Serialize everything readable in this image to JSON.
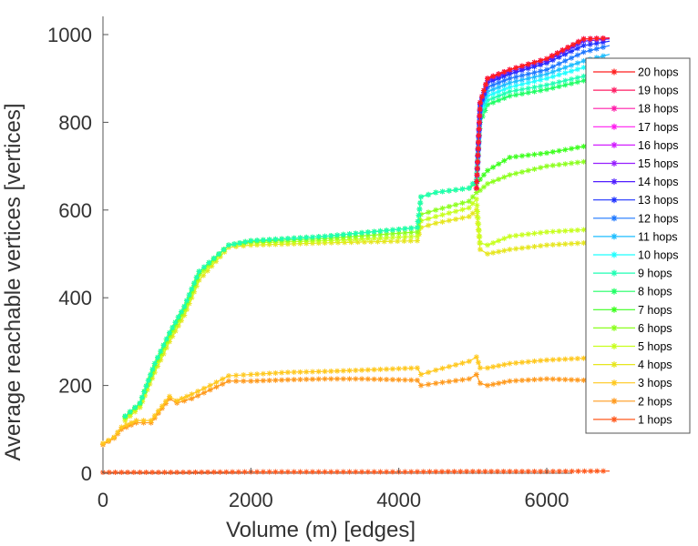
{
  "chart_data": {
    "type": "line",
    "title": "",
    "xlabel": "Volume (m) [edges]",
    "ylabel": "Average reachable vertices [vertices]",
    "xlim": [
      0,
      7000
    ],
    "ylim": [
      0,
      1030
    ],
    "xticks": [
      0,
      2000,
      4000,
      6000
    ],
    "yticks": [
      0,
      200,
      400,
      600,
      800,
      1000
    ],
    "grid": false,
    "legend_position": "right",
    "series": [
      {
        "name": "1 hops",
        "color": "#ff5a1e",
        "x": [
          0,
          1000,
          2000,
          3000,
          4000,
          5000,
          6000,
          6850
        ],
        "y": [
          2,
          2,
          3,
          3,
          3,
          4,
          4,
          5
        ]
      },
      {
        "name": "2 hops",
        "color": "#ff9a1e",
        "x": [
          0,
          150,
          250,
          450,
          650,
          900,
          1000,
          1200,
          1450,
          1700,
          2000,
          2500,
          3000,
          3500,
          4250,
          4300,
          4500,
          4950,
          5050,
          5100,
          5200,
          5500,
          6000,
          6500,
          6850
        ],
        "y": [
          65,
          80,
          100,
          115,
          115,
          170,
          160,
          170,
          190,
          210,
          210,
          213,
          215,
          215,
          212,
          200,
          205,
          215,
          225,
          205,
          200,
          210,
          215,
          212,
          230
        ]
      },
      {
        "name": "3 hops",
        "color": "#ffc81e",
        "x": [
          0,
          150,
          250,
          450,
          650,
          900,
          1000,
          1200,
          1450,
          1700,
          2000,
          2500,
          3000,
          3500,
          4250,
          4300,
          4500,
          4950,
          5050,
          5100,
          5200,
          5500,
          6000,
          6500,
          6850
        ],
        "y": [
          68,
          82,
          105,
          120,
          120,
          175,
          165,
          180,
          200,
          222,
          225,
          230,
          232,
          235,
          240,
          225,
          235,
          255,
          265,
          240,
          240,
          250,
          258,
          262,
          280
        ]
      },
      {
        "name": "4 hops",
        "color": "#e6e61e",
        "x": [
          300,
          500,
          700,
          900,
          1100,
          1300,
          1700,
          2000,
          3000,
          4250,
          4300,
          4500,
          4950,
          5050,
          5100,
          5200,
          5500,
          6000,
          6500,
          6850
        ],
        "y": [
          120,
          150,
          230,
          300,
          360,
          440,
          515,
          520,
          525,
          530,
          560,
          570,
          585,
          600,
          510,
          500,
          510,
          520,
          525,
          530
        ]
      },
      {
        "name": "5 hops",
        "color": "#c8ff1e",
        "x": [
          300,
          500,
          700,
          900,
          1100,
          1300,
          1700,
          2000,
          3000,
          4250,
          4300,
          4500,
          4950,
          5050,
          5100,
          5200,
          5500,
          6000,
          6500,
          6850
        ],
        "y": [
          125,
          155,
          240,
          310,
          370,
          450,
          520,
          525,
          530,
          540,
          575,
          585,
          605,
          625,
          525,
          520,
          540,
          550,
          555,
          565
        ]
      },
      {
        "name": "6 hops",
        "color": "#8cff1e",
        "x": [
          300,
          500,
          700,
          900,
          1100,
          1300,
          1700,
          2000,
          3000,
          4250,
          4300,
          4500,
          4950,
          5050,
          5100,
          5200,
          5500,
          6000,
          6500,
          6850
        ],
        "y": [
          128,
          158,
          245,
          315,
          375,
          455,
          520,
          528,
          535,
          550,
          590,
          600,
          620,
          640,
          645,
          660,
          680,
          700,
          710,
          730
        ]
      },
      {
        "name": "7 hops",
        "color": "#3cff1e",
        "x": [
          300,
          500,
          700,
          900,
          1100,
          1300,
          1700,
          2000,
          3000,
          4250,
          4300,
          4500,
          4950,
          5050,
          5100,
          5200,
          5500,
          6000,
          6500,
          6850
        ],
        "y": [
          130,
          160,
          250,
          320,
          380,
          460,
          520,
          530,
          540,
          560,
          630,
          640,
          650,
          660,
          670,
          690,
          720,
          730,
          745,
          765
        ]
      },
      {
        "name": "8 hops",
        "color": "#1eff64",
        "x": [
          300,
          500,
          700,
          900,
          1100,
          1300,
          1700,
          2000,
          3000,
          4250,
          4300,
          4500,
          4950,
          5050,
          5100,
          5200,
          5500,
          6000,
          6500,
          6850
        ],
        "y": [
          130,
          160,
          250,
          320,
          380,
          460,
          520,
          530,
          540,
          560,
          630,
          640,
          650,
          670,
          800,
          840,
          860,
          875,
          895,
          910
        ]
      },
      {
        "name": "9 hops",
        "color": "#1effb4",
        "x": [
          300,
          500,
          700,
          900,
          1100,
          1300,
          1700,
          2000,
          3000,
          4250,
          4300,
          4500,
          4950,
          5050,
          5100,
          5200,
          5500,
          6000,
          6500,
          6850
        ],
        "y": [
          130,
          160,
          250,
          320,
          380,
          460,
          520,
          530,
          540,
          560,
          630,
          640,
          650,
          670,
          815,
          850,
          870,
          885,
          905,
          920
        ]
      },
      {
        "name": "10 hops",
        "color": "#1effff",
        "x": [
          5050,
          5100,
          5200,
          5500,
          6000,
          6500,
          6850
        ],
        "y": [
          650,
          825,
          860,
          880,
          900,
          925,
          940
        ]
      },
      {
        "name": "11 hops",
        "color": "#1ebeff",
        "x": [
          5050,
          5100,
          5200,
          5500,
          6000,
          6500,
          6850
        ],
        "y": [
          650,
          830,
          870,
          890,
          910,
          940,
          955
        ]
      },
      {
        "name": "12 hops",
        "color": "#1e78ff",
        "x": [
          5050,
          5100,
          5200,
          5500,
          6000,
          6500,
          6850
        ],
        "y": [
          650,
          835,
          880,
          900,
          920,
          960,
          975
        ]
      },
      {
        "name": "13 hops",
        "color": "#1e32ff",
        "x": [
          5050,
          5100,
          5200,
          5500,
          6000,
          6500,
          6850
        ],
        "y": [
          650,
          840,
          890,
          910,
          935,
          975,
          985
        ]
      },
      {
        "name": "14 hops",
        "color": "#501eff",
        "x": [
          5050,
          5100,
          5200,
          5500,
          6000,
          6500,
          6850
        ],
        "y": [
          650,
          842,
          895,
          915,
          940,
          985,
          990
        ]
      },
      {
        "name": "15 hops",
        "color": "#961eff",
        "x": [
          5050,
          5100,
          5200,
          5500,
          6000,
          6500,
          6850
        ],
        "y": [
          650,
          845,
          900,
          920,
          945,
          990,
          992
        ]
      },
      {
        "name": "16 hops",
        "color": "#d21eff",
        "x": [
          5050,
          5100,
          5200,
          5500,
          6000,
          6500,
          6850
        ],
        "y": [
          650,
          845,
          900,
          920,
          945,
          990,
          992
        ]
      },
      {
        "name": "17 hops",
        "color": "#ff1ef0",
        "x": [
          5050,
          5100,
          5200,
          5500,
          6000,
          6500,
          6850
        ],
        "y": [
          650,
          845,
          900,
          920,
          945,
          990,
          992
        ]
      },
      {
        "name": "18 hops",
        "color": "#ff1eaa",
        "x": [
          5050,
          5100,
          5200,
          5500,
          6000,
          6500,
          6850
        ],
        "y": [
          650,
          845,
          900,
          920,
          945,
          990,
          992
        ]
      },
      {
        "name": "19 hops",
        "color": "#ff1e64",
        "x": [
          5050,
          5100,
          5200,
          5500,
          6000,
          6500,
          6850
        ],
        "y": [
          650,
          845,
          900,
          920,
          945,
          990,
          992
        ]
      },
      {
        "name": "20 hops",
        "color": "#ff1e1e",
        "x": [
          5050,
          5100,
          5200,
          5500,
          6000,
          6500,
          6850
        ],
        "y": [
          650,
          845,
          900,
          920,
          945,
          990,
          992
        ]
      }
    ]
  }
}
